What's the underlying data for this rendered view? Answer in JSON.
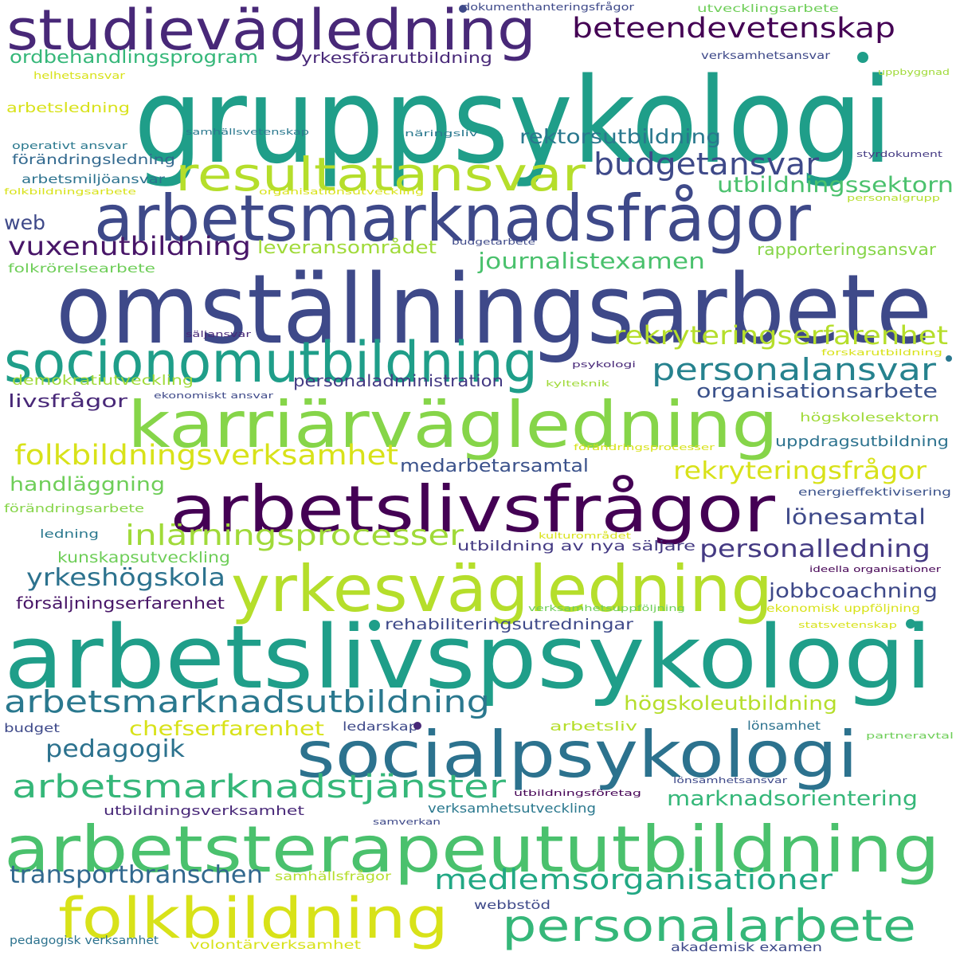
{
  "words": [
    {
      "text": "gruppsykologi",
      "color": "#1f9e89"
    },
    {
      "text": "omställningsarbete",
      "color": "#3e4989"
    },
    {
      "text": "arbetslivspsykologi",
      "color": "#1f9e89"
    },
    {
      "text": "arbetsterapeututbildning",
      "color": "#4ac16d"
    },
    {
      "text": "studievägledning",
      "color": "#482878"
    },
    {
      "text": "arbetsmarknadsfrågor",
      "color": "#3e4989"
    },
    {
      "text": "karriärvägledning",
      "color": "#86d549"
    },
    {
      "text": "arbetslivsfrågor",
      "color": "#440154"
    },
    {
      "text": "yrkesvägledning",
      "color": "#b5de2b"
    },
    {
      "text": "socialpsykologi",
      "color": "#2c728e"
    },
    {
      "text": "socionomutbildning",
      "color": "#1f9e89"
    },
    {
      "text": "folkbildning",
      "color": "#d8e219"
    },
    {
      "text": "personalarbete",
      "color": "#35b779"
    },
    {
      "text": "resultatansvar",
      "color": "#b5de2b"
    },
    {
      "text": "beteendevetenskap",
      "color": "#440154"
    },
    {
      "text": "budgetansvar",
      "color": "#3e4989"
    },
    {
      "text": "personalansvar",
      "color": "#26828e"
    },
    {
      "text": "folkbildningsverksamhet",
      "color": "#d8e219"
    },
    {
      "text": "inlärningsprocesser",
      "color": "#a0da39"
    },
    {
      "text": "arbetsmarknadsutbildning",
      "color": "#2a788e"
    },
    {
      "text": "arbetsmarknadstjänster",
      "color": "#35b779"
    },
    {
      "text": "medlemsorganisationer",
      "color": "#22a884"
    },
    {
      "text": "rekryteringserfarenhet",
      "color": "#b5de2b"
    },
    {
      "text": "utbildningssektorn",
      "color": "#4ac16d"
    },
    {
      "text": "vuxenutbildning",
      "color": "#481668"
    },
    {
      "text": "journalistexamen",
      "color": "#4ac16d"
    },
    {
      "text": "rekryteringsfrågor",
      "color": "#d8e219"
    },
    {
      "text": "personalledning",
      "color": "#443a83"
    },
    {
      "text": "yrkeshögskola",
      "color": "#2c728e"
    },
    {
      "text": "pedagogik",
      "color": "#2c728e"
    },
    {
      "text": "transportbranschen",
      "color": "#31688e"
    },
    {
      "text": "rektorsutbildning",
      "color": "#2a788e"
    },
    {
      "text": "organisationsarbete",
      "color": "#3b528b"
    },
    {
      "text": "jobbcoachning",
      "color": "#3e4989"
    },
    {
      "text": "marknadsorientering",
      "color": "#35b779"
    },
    {
      "text": "chefserfarenhet",
      "color": "#d8e219"
    },
    {
      "text": "högskoleutbildning",
      "color": "#b5de2b"
    },
    {
      "text": "lönesamtal",
      "color": "#3e4989"
    },
    {
      "text": "handläggning",
      "color": "#6ece58"
    },
    {
      "text": "ordbehandlingsprogram",
      "color": "#35b779"
    },
    {
      "text": "web",
      "color": "#3e4989"
    },
    {
      "text": "leveransområdet",
      "color": "#a0da39"
    },
    {
      "text": "medarbetarsamtal",
      "color": "#3b528b"
    },
    {
      "text": "livsfrågor",
      "color": "#482878"
    },
    {
      "text": "personaladministration",
      "color": "#443a83"
    },
    {
      "text": "rapporteringsansvar",
      "color": "#86d549"
    },
    {
      "text": "yrkesförarutbildning",
      "color": "#482878"
    },
    {
      "text": "rehabiliteringsutredningar",
      "color": "#3e4989"
    },
    {
      "text": "utbildning av nya säljare",
      "color": "#443a83"
    },
    {
      "text": "försäljningserfarenhet",
      "color": "#481668"
    },
    {
      "text": "kunskapsutveckling",
      "color": "#6ece58"
    },
    {
      "text": "uppdragsutbildning",
      "color": "#2c728e"
    },
    {
      "text": "demokratiutveckling",
      "color": "#a0da39"
    },
    {
      "text": "utbildningsverksamhet",
      "color": "#482878"
    },
    {
      "text": "verksamhetsutveckling",
      "color": "#2a788e"
    },
    {
      "text": "förändringsledning",
      "color": "#31688e"
    },
    {
      "text": "arbetsledning",
      "color": "#d8e219"
    },
    {
      "text": "folkrörelsearbete",
      "color": "#6ece58"
    },
    {
      "text": "arbetsmiljöansvar",
      "color": "#2c728e"
    },
    {
      "text": "arbetsliv",
      "color": "#b5de2b"
    },
    {
      "text": "ledarskap",
      "color": "#3e4989"
    },
    {
      "text": "budget",
      "color": "#3e4989"
    },
    {
      "text": "lönsamhet",
      "color": "#2c728e"
    },
    {
      "text": "högskolesektorn",
      "color": "#a0da39"
    },
    {
      "text": "samhällsfrågor",
      "color": "#b5de2b"
    },
    {
      "text": "webbstöd",
      "color": "#3e4989"
    },
    {
      "text": "volontärverksamhet",
      "color": "#d8e219"
    },
    {
      "text": "akademisk examen",
      "color": "#3e4989"
    },
    {
      "text": "pedagogisk verksamhet",
      "color": "#2c728e"
    },
    {
      "text": "förändringsarbete",
      "color": "#86d549"
    },
    {
      "text": "ekonomisk uppföljning",
      "color": "#d8e219"
    },
    {
      "text": "energieffektivisering",
      "color": "#3b528b"
    },
    {
      "text": "ideella organisationer",
      "color": "#440154"
    },
    {
      "text": "ledning",
      "color": "#2a788e"
    },
    {
      "text": "operativt ansvar",
      "color": "#2a788e"
    },
    {
      "text": "dokumenthanteringsfrågor",
      "color": "#3e4989"
    },
    {
      "text": "utvecklingsarbete",
      "color": "#6ece58"
    },
    {
      "text": "verksamhetsansvar",
      "color": "#3e4989"
    },
    {
      "text": "helhetsansvar",
      "color": "#d8e219"
    },
    {
      "text": "uppbyggnad",
      "color": "#a0da39"
    },
    {
      "text": "samhällsvetenskap",
      "color": "#2a788e"
    },
    {
      "text": "näringsliv",
      "color": "#2a788e"
    },
    {
      "text": "styrdokument",
      "color": "#443a83"
    },
    {
      "text": "folkbildningsarbete",
      "color": "#d8e219"
    },
    {
      "text": "organisationsutveckling",
      "color": "#d8e219"
    },
    {
      "text": "personalgrupp",
      "color": "#b5de2b"
    },
    {
      "text": "budgetarbete",
      "color": "#3e4989"
    },
    {
      "text": "säljansvar",
      "color": "#482878"
    },
    {
      "text": "forskarutbildning",
      "color": "#d8e219"
    },
    {
      "text": "psykologi",
      "color": "#482878"
    },
    {
      "text": "ekonomiskt ansvar",
      "color": "#3e4989"
    },
    {
      "text": "kylteknik",
      "color": "#a0da39"
    },
    {
      "text": "förändringsprocesser",
      "color": "#d8e219"
    },
    {
      "text": "kulturområdet",
      "color": "#d8e219"
    },
    {
      "text": "verksamhetsuppföljning",
      "color": "#6ece58"
    },
    {
      "text": "statsvetenskap",
      "color": "#d8e219"
    },
    {
      "text": "partneravtal",
      "color": "#6ece58"
    },
    {
      "text": "lönsamhetsansvar",
      "color": "#3e4989"
    },
    {
      "text": "utbildningsföretag",
      "color": "#440154"
    },
    {
      "text": "samverkan",
      "color": "#3e4989"
    }
  ],
  "dots": [
    {
      "color": "#3e4989"
    },
    {
      "color": "#1f9e89"
    },
    {
      "color": "#1f9e89"
    },
    {
      "color": "#1f9e89"
    },
    {
      "color": "#482878"
    },
    {
      "color": "#2a788e"
    }
  ]
}
